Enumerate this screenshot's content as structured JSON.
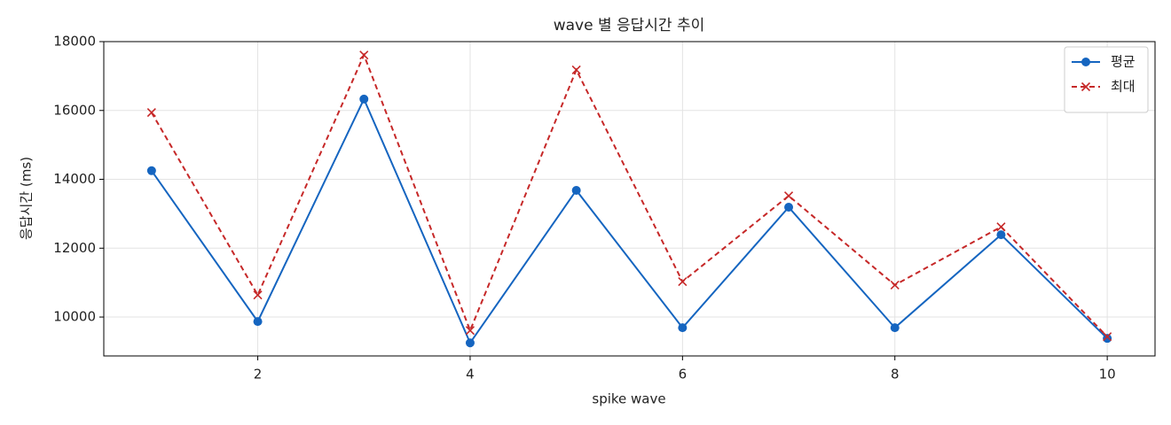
{
  "chart_data": {
    "type": "line",
    "title": "wave 별 응답시간 추이",
    "x_label": "spike wave",
    "y_label": "응답시간 (ms)",
    "x": [
      1,
      2,
      3,
      4,
      5,
      6,
      7,
      8,
      9,
      10
    ],
    "series": [
      {
        "name": "평균",
        "color": "#1565c0",
        "marker": "o",
        "linestyle": "solid",
        "values": [
          14250,
          9870,
          16330,
          9250,
          13680,
          9690,
          13190,
          9690,
          12390,
          9380
        ]
      },
      {
        "name": "최대",
        "color": "#c62828",
        "marker": "x",
        "linestyle": "dashed",
        "values": [
          15940,
          10640,
          17610,
          9610,
          17180,
          11030,
          13520,
          10930,
          12620,
          9430
        ]
      }
    ],
    "xlim": [
      0.55,
      10.45
    ],
    "ylim": [
      8870,
      18000
    ],
    "xticks": [
      2,
      4,
      6,
      8,
      10
    ],
    "yticks": [
      10000,
      12000,
      14000,
      16000,
      18000
    ],
    "grid": true,
    "legend": "upper right"
  }
}
